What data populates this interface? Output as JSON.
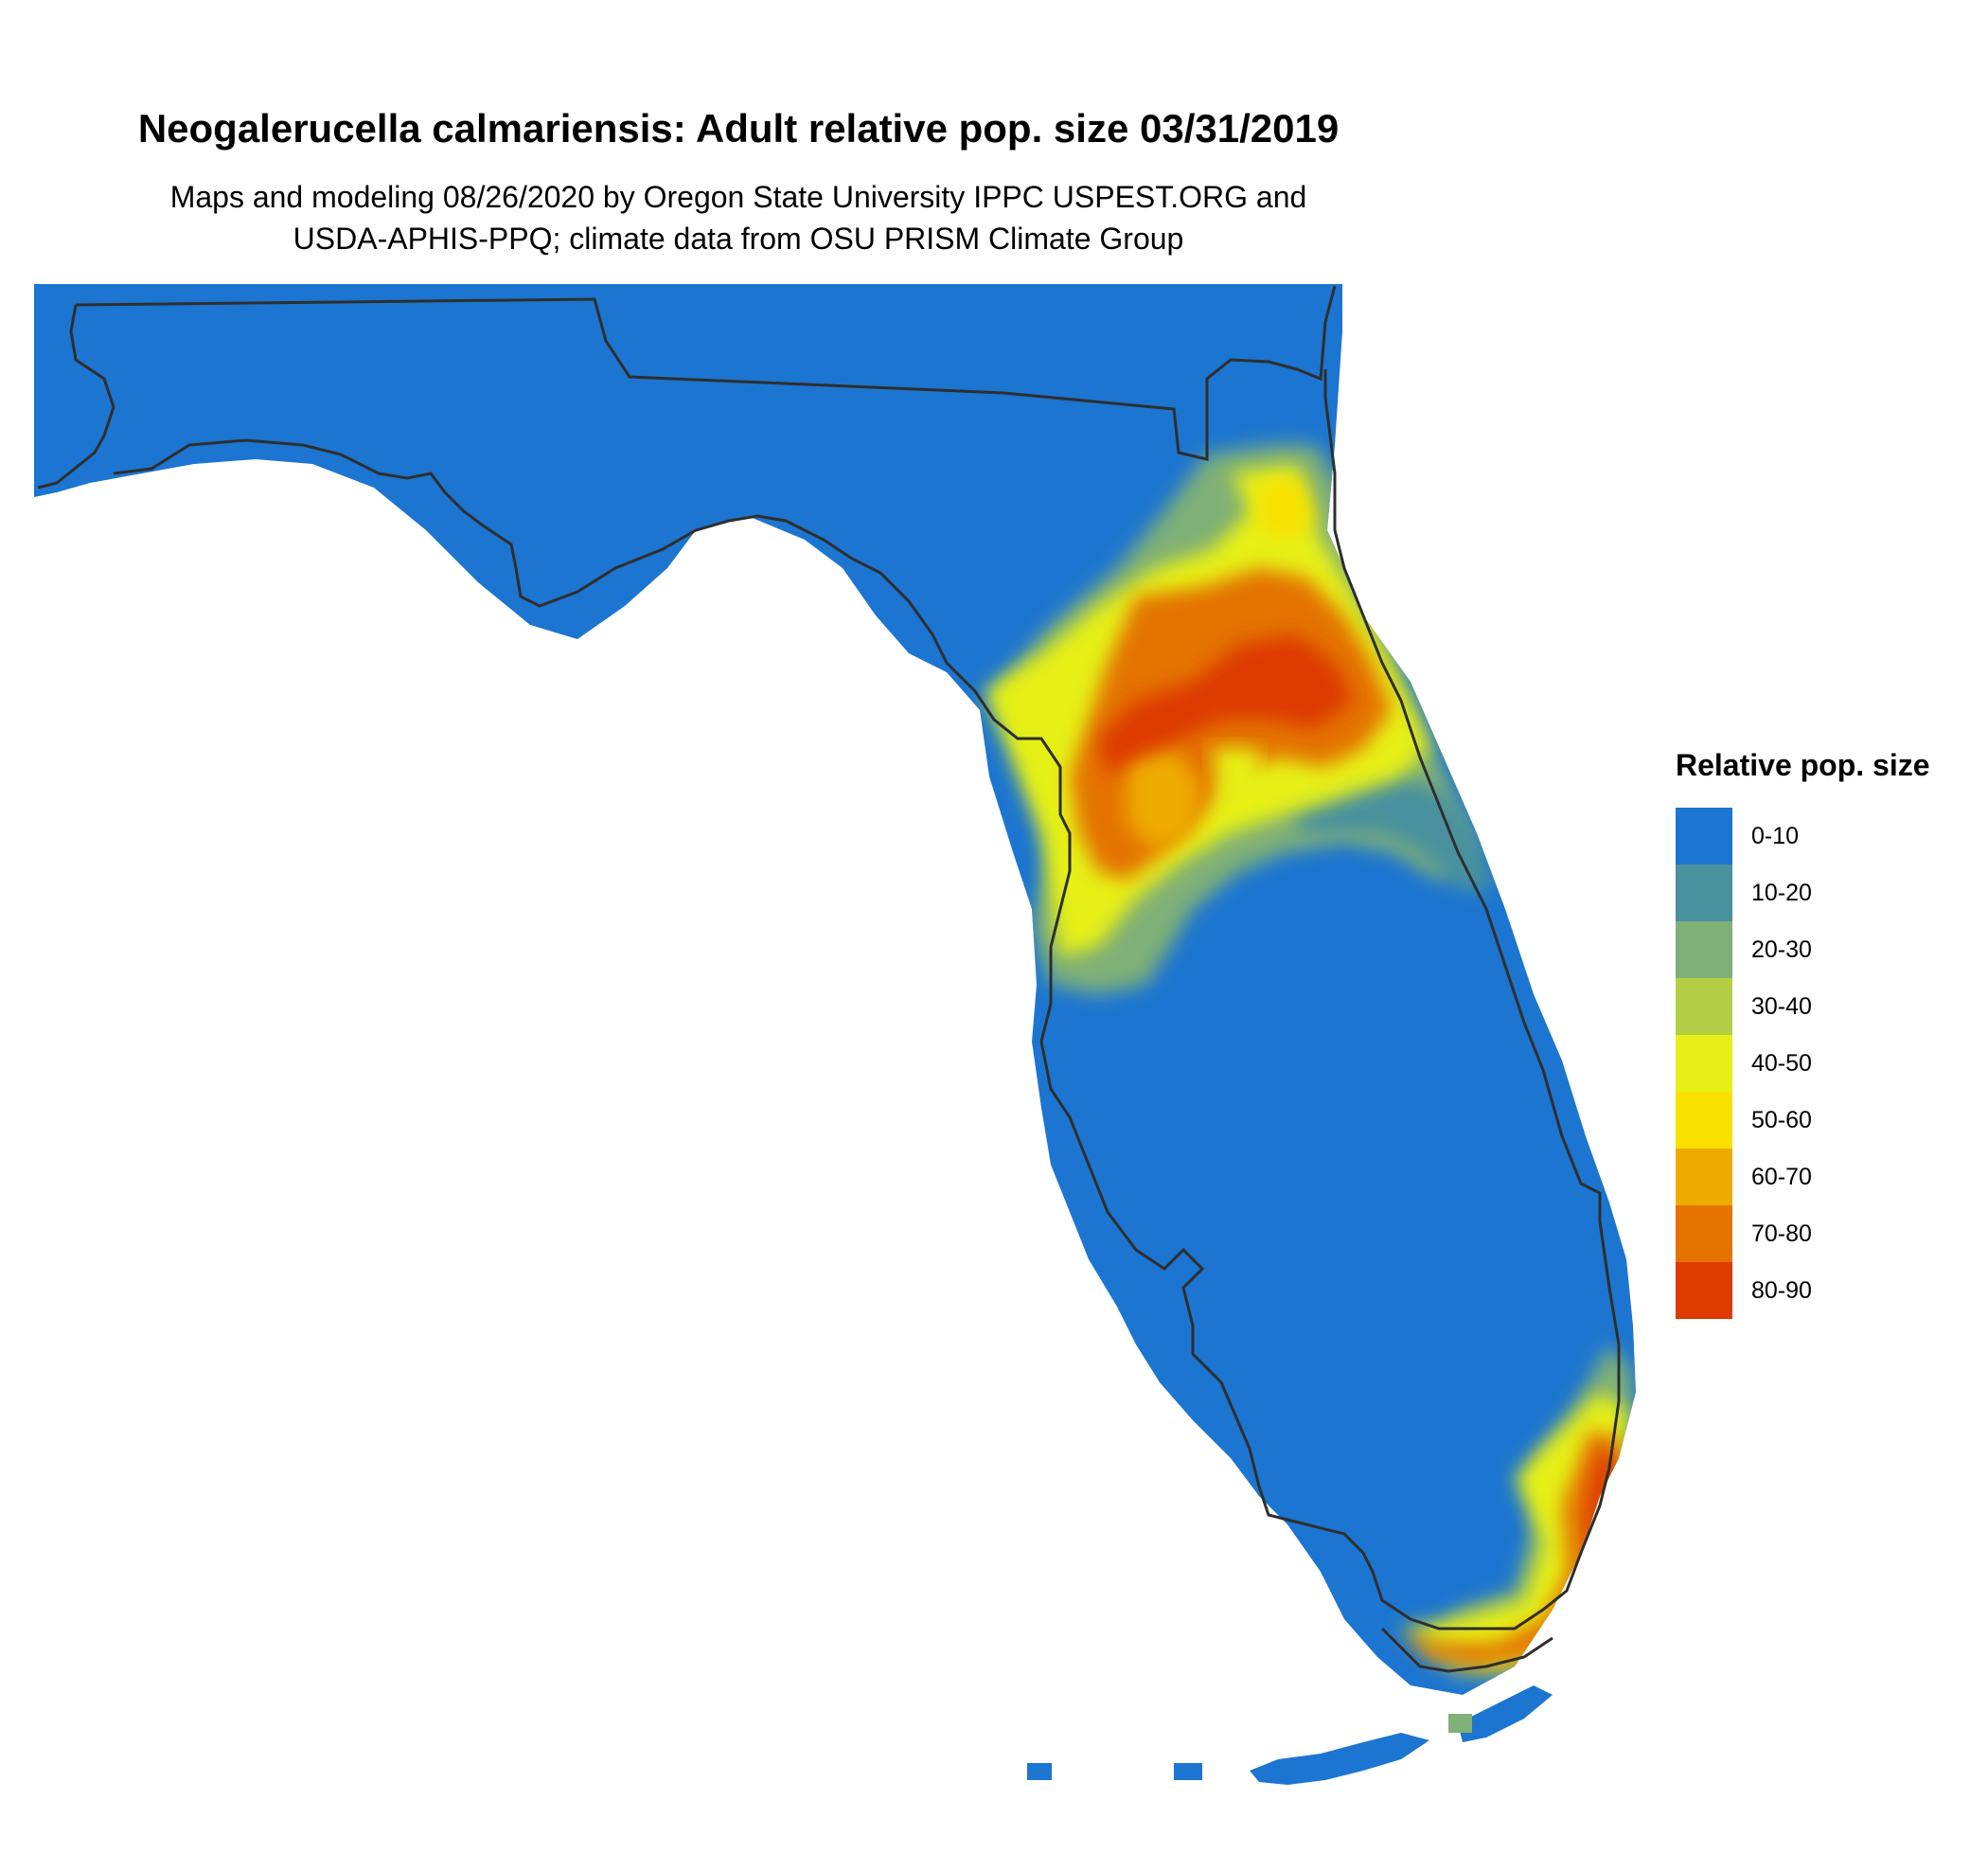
{
  "title": "Neogalerucella calmariensis: Adult relative pop. size 03/31/2019",
  "subtitle_line1": "Maps and modeling 08/26/2020 by Oregon State University IPPC USPEST.ORG and",
  "subtitle_line2": "USDA-APHIS-PPQ; climate data from OSU PRISM Climate Group",
  "legend": {
    "title": "Relative pop. size",
    "items": [
      {
        "label": "0-10",
        "color": "#1c75d0"
      },
      {
        "label": "10-20",
        "color": "#4a919e"
      },
      {
        "label": "20-30",
        "color": "#7fb077"
      },
      {
        "label": "30-40",
        "color": "#b4cf45"
      },
      {
        "label": "40-50",
        "color": "#e6f018"
      },
      {
        "label": "50-60",
        "color": "#f8e100"
      },
      {
        "label": "60-70",
        "color": "#eeab00"
      },
      {
        "label": "70-80",
        "color": "#e47300"
      },
      {
        "label": "80-90",
        "color": "#dd3a00"
      }
    ]
  }
}
